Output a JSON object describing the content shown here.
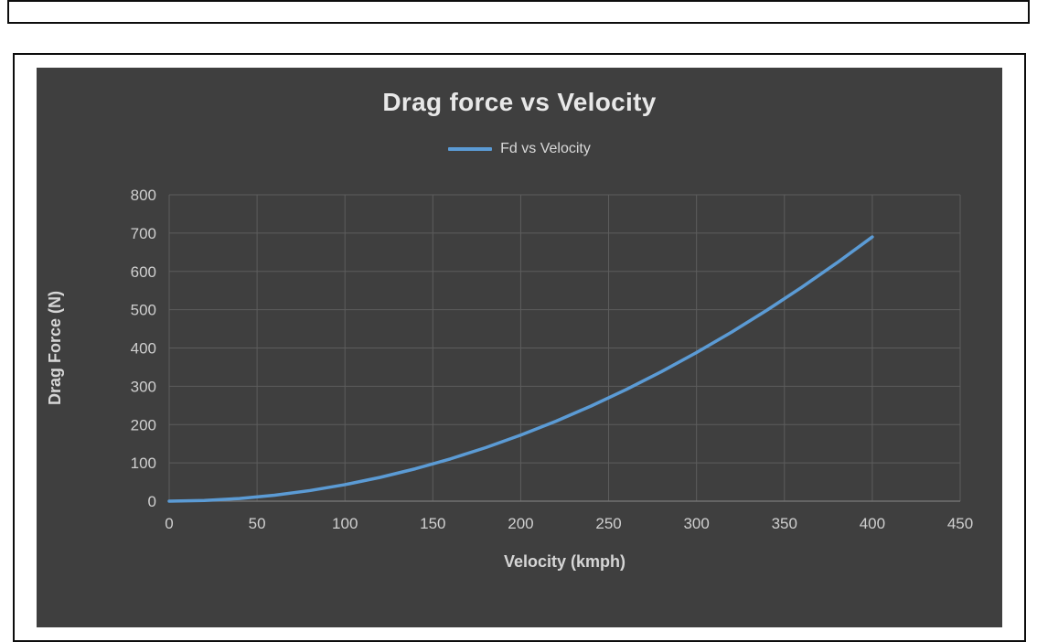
{
  "chart": {
    "title": "Drag force vs Velocity",
    "legend_label": "Fd vs Velocity"
  },
  "chart_data": {
    "type": "line",
    "title": "Drag force vs Velocity",
    "xlabel": "Velocity (kmph)",
    "ylabel": "Drag Force (N)",
    "legend": [
      "Fd vs Velocity"
    ],
    "legend_position": "top",
    "grid": true,
    "xlim": [
      0,
      450
    ],
    "ylim": [
      0,
      800
    ],
    "xticks": [
      0,
      50,
      100,
      150,
      200,
      250,
      300,
      350,
      400,
      450
    ],
    "yticks": [
      0,
      100,
      200,
      300,
      400,
      500,
      600,
      700,
      800
    ],
    "series": [
      {
        "name": "Fd vs Velocity",
        "x": [
          0,
          20,
          40,
          60,
          80,
          100,
          120,
          140,
          160,
          180,
          200,
          220,
          240,
          260,
          280,
          300,
          320,
          340,
          360,
          380,
          400
        ],
        "y": [
          0,
          1.7,
          6.9,
          15.5,
          27.6,
          43.1,
          62.1,
          84.5,
          110.4,
          139.7,
          172.5,
          208.7,
          248.4,
          291.5,
          338.1,
          388.1,
          441.6,
          498.5,
          558.9,
          622.7,
          690.0
        ]
      }
    ],
    "colors": {
      "line": "#5b9bd5",
      "plot_bg": "#3f3f3f",
      "grid": "#5d5d5d",
      "axis": "#7a7a7a",
      "text": "#cfcfcf",
      "title": "#e8e8e8"
    }
  }
}
